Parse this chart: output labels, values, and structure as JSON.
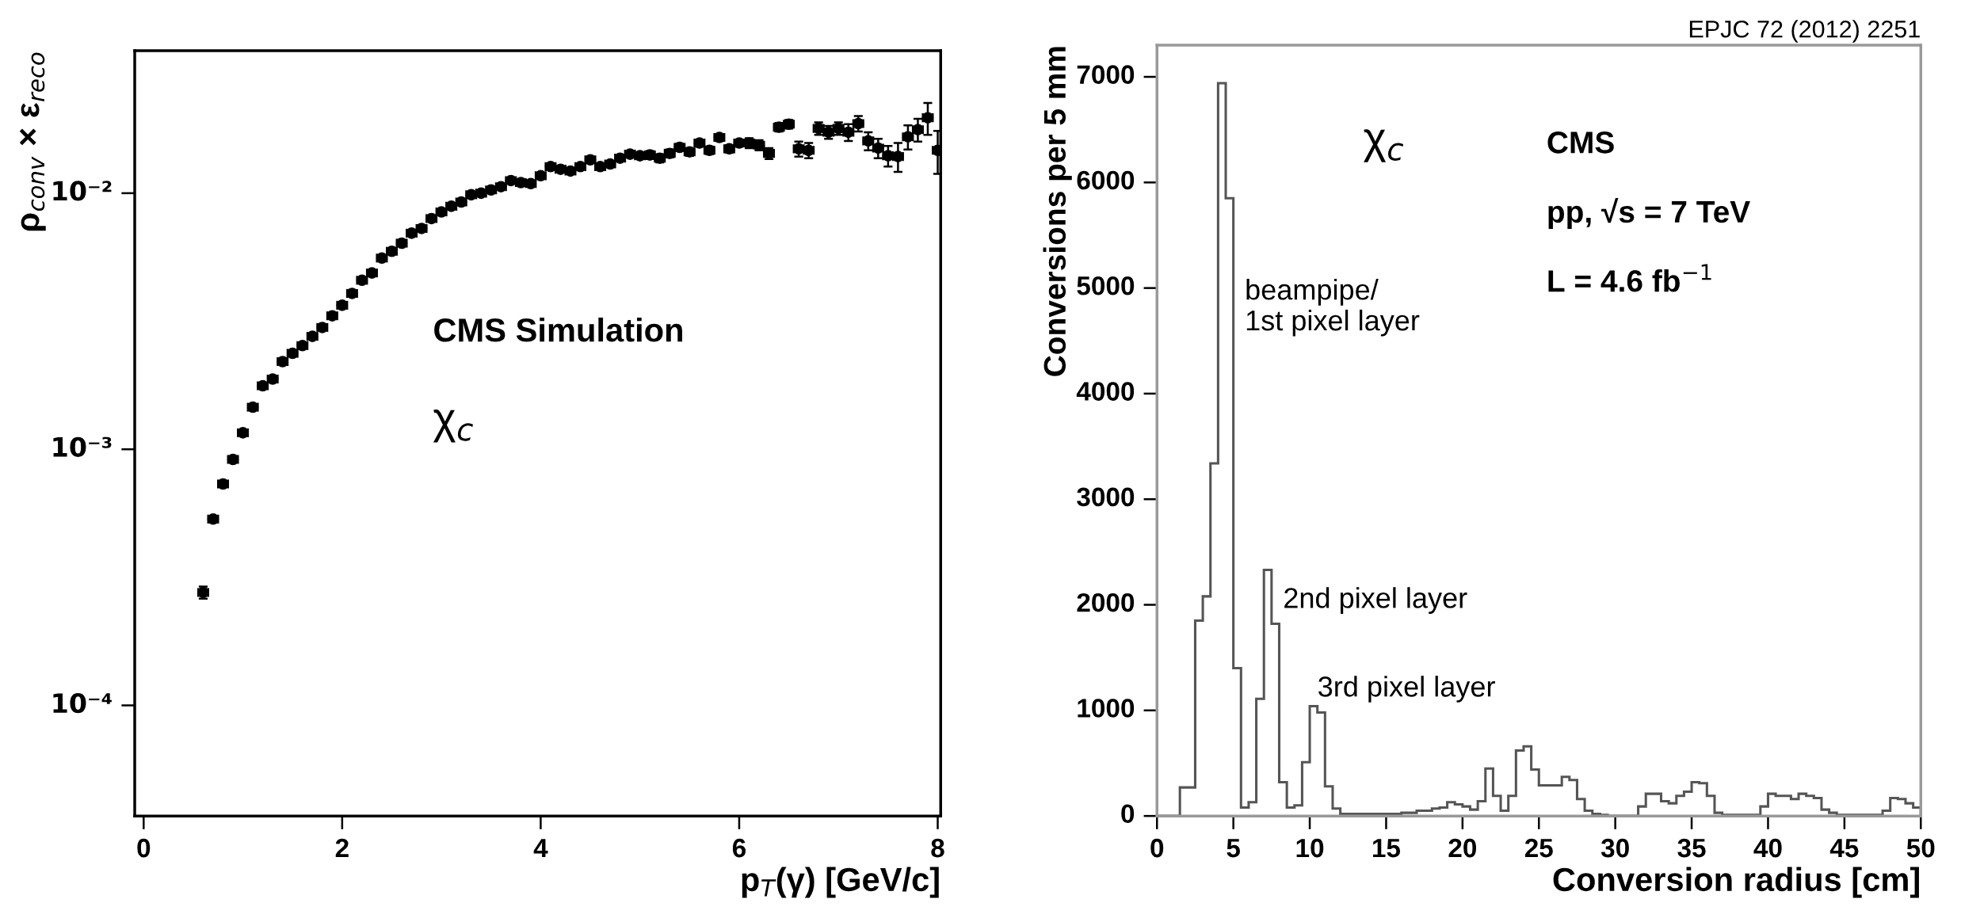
{
  "chart_data": [
    {
      "type": "scatter",
      "xlabel": "p$_{T}$(γ) [GeV/c]",
      "ylabel": "ρ$_{conv}$ × ε$_{reco}$",
      "log": "y",
      "marker": "circle",
      "grid": false,
      "legend": false,
      "annotations": [
        "CMS Simulation",
        "χ$_{c}$"
      ],
      "xlim": [
        -0.09,
        8.03
      ],
      "xticks": [
        0,
        2,
        4,
        6,
        8
      ],
      "ylim": [
        3.7e-05,
        0.036
      ],
      "yticks": [
        {
          "value": 0.0001,
          "label": "10⁻⁴"
        },
        {
          "value": 0.001,
          "label": "10⁻³"
        },
        {
          "value": 0.01,
          "label": "10⁻²"
        }
      ],
      "series": [
        {
          "color": "#000000",
          "x": [
            0.6,
            0.7,
            0.8,
            0.9,
            1.0,
            1.1,
            1.2,
            1.3,
            1.4,
            1.5,
            1.6,
            1.7,
            1.8,
            1.9,
            2.0,
            2.1,
            2.2,
            2.3,
            2.4,
            2.5,
            2.6,
            2.7,
            2.8,
            2.9,
            3.0,
            3.1,
            3.2,
            3.3,
            3.4,
            3.5,
            3.6,
            3.7,
            3.8,
            3.9,
            4.0,
            4.1,
            4.2,
            4.3,
            4.4,
            4.5,
            4.6,
            4.7,
            4.8,
            4.9,
            5.0,
            5.1,
            5.2,
            5.3,
            5.4,
            5.5,
            5.6,
            5.7,
            5.8,
            5.9,
            6.0,
            6.1,
            6.2,
            6.3,
            6.4,
            6.5,
            6.6,
            6.7,
            6.8,
            6.9,
            7.0,
            7.1,
            7.2,
            7.3,
            7.4,
            7.5,
            7.6,
            7.7,
            7.8,
            7.9,
            8.0
          ],
          "values": [
            0.000276,
            0.000534,
            0.000732,
            0.000913,
            0.00116,
            0.00146,
            0.00177,
            0.00188,
            0.0022,
            0.00237,
            0.00254,
            0.00276,
            0.00299,
            0.00332,
            0.00365,
            0.00406,
            0.00457,
            0.00488,
            0.00558,
            0.00593,
            0.00638,
            0.00698,
            0.00728,
            0.00796,
            0.00845,
            0.00889,
            0.00924,
            0.00986,
            0.01,
            0.0103,
            0.0106,
            0.0112,
            0.011,
            0.0109,
            0.0117,
            0.0127,
            0.0124,
            0.0122,
            0.0127,
            0.0135,
            0.0127,
            0.013,
            0.0137,
            0.0142,
            0.014,
            0.0141,
            0.0137,
            0.0143,
            0.0151,
            0.0145,
            0.0157,
            0.0147,
            0.0165,
            0.0149,
            0.0157,
            0.0157,
            0.0154,
            0.0143,
            0.0181,
            0.0186,
            0.0149,
            0.0147,
            0.0179,
            0.0173,
            0.0179,
            0.0173,
            0.0187,
            0.016,
            0.015,
            0.014,
            0.0139,
            0.0166,
            0.0177,
            0.0197,
            0.0147
          ],
          "errors": [
            1.5e-05,
            1.5e-05,
            1.5e-05,
            2e-05,
            2e-05,
            3e-05,
            3e-05,
            3e-05,
            5e-05,
            5e-05,
            5e-05,
            5e-05,
            5e-05,
            5e-05,
            5e-05,
            0.0001,
            0.0001,
            0.0001,
            0.0001,
            0.0001,
            0.0001,
            0.0001,
            0.0001,
            0.0001,
            0.0001,
            0.0002,
            0.0002,
            0.0002,
            0.0002,
            0.0002,
            0.0002,
            0.0002,
            0.0002,
            0.0002,
            0.0002,
            0.0003,
            0.0003,
            0.0003,
            0.0003,
            0.0003,
            0.0003,
            0.0003,
            0.0003,
            0.0003,
            0.0003,
            0.0005,
            0.0005,
            0.0005,
            0.0005,
            0.0005,
            0.0005,
            0.0005,
            0.0005,
            0.0005,
            0.0005,
            0.0007,
            0.0007,
            0.0007,
            0.0007,
            0.0007,
            0.001,
            0.001,
            0.001,
            0.001,
            0.001,
            0.0013,
            0.0013,
            0.0013,
            0.0013,
            0.0013,
            0.0018,
            0.0018,
            0.0018,
            0.0028,
            0.0028
          ],
          "xerrors": [
            0.05,
            0.05,
            0.05,
            0.05,
            0.05,
            0.05,
            0.05,
            0.05,
            0.05,
            0.05,
            0.05,
            0.05,
            0.05,
            0.05,
            0.05,
            0.05,
            0.05,
            0.05,
            0.05,
            0.05,
            0.05,
            0.05,
            0.05,
            0.05,
            0.05,
            0.05,
            0.05,
            0.05,
            0.05,
            0.05,
            0.05,
            0.05,
            0.05,
            0.05,
            0.05,
            0.05,
            0.05,
            0.05,
            0.05,
            0.05,
            0.05,
            0.05,
            0.05,
            0.05,
            0.05,
            0.05,
            0.05,
            0.05,
            0.05,
            0.05,
            0.05,
            0.05,
            0.05,
            0.05,
            0.05,
            0.05,
            0.05,
            0.05,
            0.05,
            0.05,
            0.05,
            0.05,
            0.05,
            0.05,
            0.05,
            0.05,
            0.05,
            0.05,
            0.05,
            0.05,
            0.05,
            0.05,
            0.05,
            0.05,
            0.05
          ]
        }
      ]
    },
    {
      "type": "histogram",
      "xlabel": "Conversion radius [cm]",
      "ylabel": "Conversions per 5 mm",
      "grid": false,
      "legend": false,
      "color": "#555555",
      "annotations": [
        "EPJC 72 (2012) 2251",
        "χ$_{c}$",
        "CMS",
        "pp, √s = 7 TeV",
        "L = 4.6 fb$^{−1}$",
        "beampipe/\n1st pixel layer",
        "2nd pixel layer",
        "3rd pixel layer"
      ],
      "xlim": [
        0,
        50
      ],
      "xticks": [
        0,
        5,
        10,
        15,
        20,
        25,
        30,
        35,
        40,
        45,
        50
      ],
      "ylim": [
        0,
        7300
      ],
      "yticks": [
        0,
        1000,
        2000,
        3000,
        4000,
        5000,
        6000,
        7000
      ],
      "bins": [
        0,
        0.5,
        1,
        1.5,
        2,
        2.5,
        3,
        3.5,
        4,
        4.5,
        5,
        5.5,
        6,
        6.5,
        7,
        7.5,
        8,
        8.5,
        9,
        9.5,
        10,
        10.5,
        11,
        11.5,
        12,
        12.5,
        13,
        13.5,
        14,
        14.5,
        15,
        15.5,
        16,
        16.5,
        17,
        17.5,
        18,
        18.5,
        19,
        19.5,
        20,
        20.5,
        21,
        21.5,
        22,
        22.5,
        23,
        23.5,
        24,
        24.5,
        25,
        25.5,
        26,
        26.5,
        27,
        27.5,
        28,
        28.5,
        29,
        29.5,
        30,
        30.5,
        31,
        31.5,
        32,
        32.5,
        33,
        33.5,
        34,
        34.5,
        35,
        35.5,
        36,
        36.5,
        37,
        37.5,
        38,
        38.5,
        39,
        39.5,
        40,
        40.5,
        41,
        41.5,
        42,
        42.5,
        43,
        43.5,
        44,
        44.5,
        45,
        45.5,
        46,
        46.5,
        47,
        47.5,
        48,
        48.5,
        49,
        49.5,
        50
      ],
      "values": [
        0,
        0,
        0,
        270,
        270,
        1850,
        2080,
        3340,
        6940,
        5850,
        1400,
        80,
        130,
        1110,
        2330,
        1820,
        320,
        80,
        100,
        510,
        1040,
        980,
        280,
        70,
        20,
        20,
        20,
        20,
        20,
        20,
        20,
        20,
        30,
        30,
        50,
        50,
        70,
        80,
        130,
        110,
        90,
        60,
        140,
        450,
        190,
        50,
        190,
        620,
        660,
        440,
        290,
        290,
        290,
        370,
        340,
        160,
        50,
        20,
        10,
        0,
        0,
        0,
        0,
        90,
        210,
        210,
        140,
        120,
        190,
        230,
        320,
        310,
        190,
        30,
        10,
        10,
        10,
        10,
        10,
        90,
        210,
        190,
        190,
        160,
        210,
        190,
        170,
        60,
        30,
        10,
        10,
        10,
        10,
        10,
        10,
        50,
        170,
        160,
        120,
        80
      ]
    }
  ]
}
